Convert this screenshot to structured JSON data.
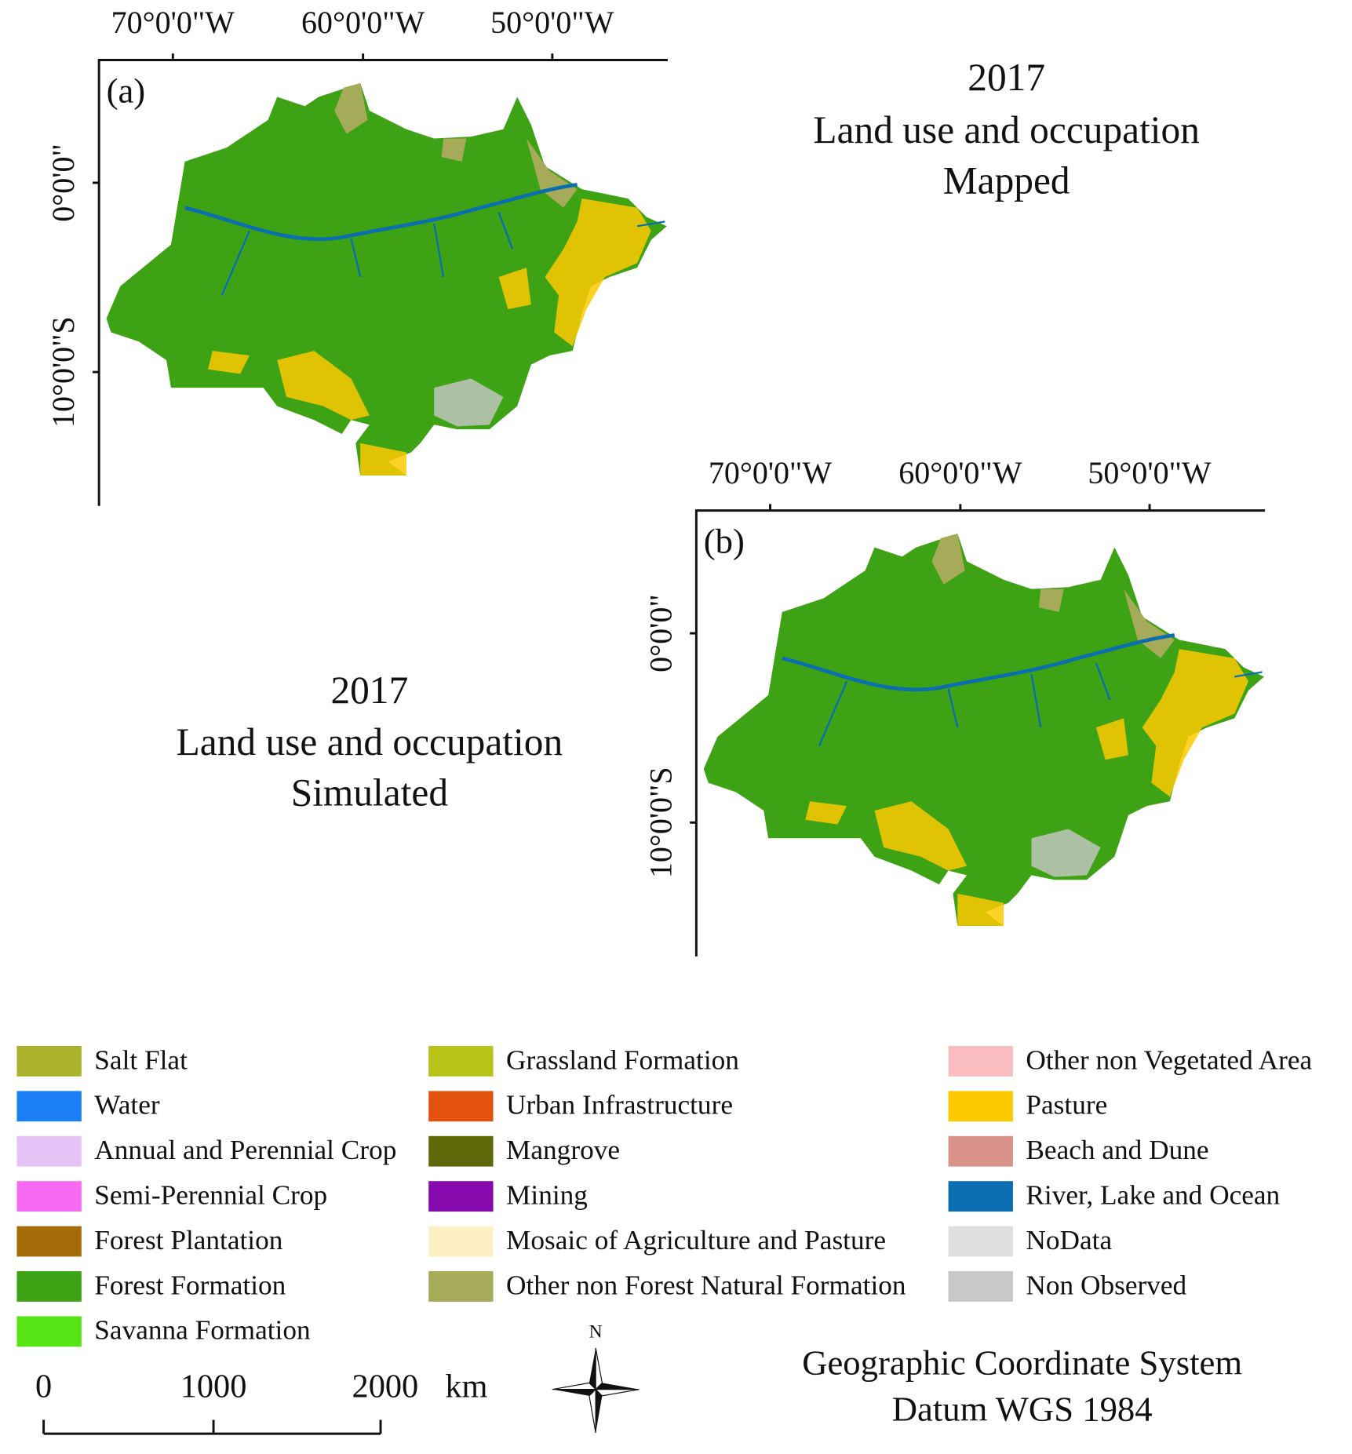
{
  "panels": [
    {
      "label": "(a)",
      "title": [
        "2017",
        "Land use and occupation",
        "Mapped"
      ],
      "x_labels": [
        "70°0'0\"W",
        "60°0'0\"W",
        "50°0'0\"W"
      ],
      "y_labels": [
        "0°0'0\"",
        "10°0'0\"S"
      ]
    },
    {
      "label": "(b)",
      "title": [
        "2017",
        "Land use and occupation",
        "Simulated"
      ],
      "x_labels": [
        "70°0'0\"W",
        "60°0'0\"W",
        "50°0'0\"W"
      ],
      "y_labels": [
        "0°0'0\"",
        "10°0'0\"S"
      ]
    }
  ],
  "legend": [
    {
      "label": "Salt Flat",
      "color": "#aab22c"
    },
    {
      "label": "Water",
      "color": "#1a7ef5"
    },
    {
      "label": "Annual and Perennial Crop",
      "color": "#e6c2f7"
    },
    {
      "label": "Semi-Perennial Crop",
      "color": "#f76af2"
    },
    {
      "label": "Forest Plantation",
      "color": "#a56d0a"
    },
    {
      "label": "Forest Formation",
      "color": "#3da214"
    },
    {
      "label": "Savanna Formation",
      "color": "#57e415"
    },
    {
      "label": "Grassland Formation",
      "color": "#b7c317"
    },
    {
      "label": "Urban Infrastructure",
      "color": "#e2520c"
    },
    {
      "label": "Mangrove",
      "color": "#5e6a0a"
    },
    {
      "label": "Mining",
      "color": "#8509ac"
    },
    {
      "label": "Mosaic of Agriculture and Pasture",
      "color": "#fdf0c4"
    },
    {
      "label": "Other non Forest Natural Formation",
      "color": "#a5ab58"
    },
    {
      "label": "Other non Vegetated Area",
      "color": "#f9bcbf"
    },
    {
      "label": "Pasture",
      "color": "#fdca00"
    },
    {
      "label": "Beach and Dune",
      "color": "#d9928a"
    },
    {
      "label": "River, Lake and Ocean",
      "color": "#0a6eb0"
    },
    {
      "label": "NoData",
      "color": "#e0e0e0"
    },
    {
      "label": "Non Observed",
      "color": "#c8c8c8"
    }
  ],
  "scale_bar": {
    "ticks": [
      0,
      1000,
      2000
    ],
    "unit": "km"
  },
  "north": "N",
  "crs": [
    "Geographic Coordinate System",
    "Datum WGS 1984"
  ]
}
